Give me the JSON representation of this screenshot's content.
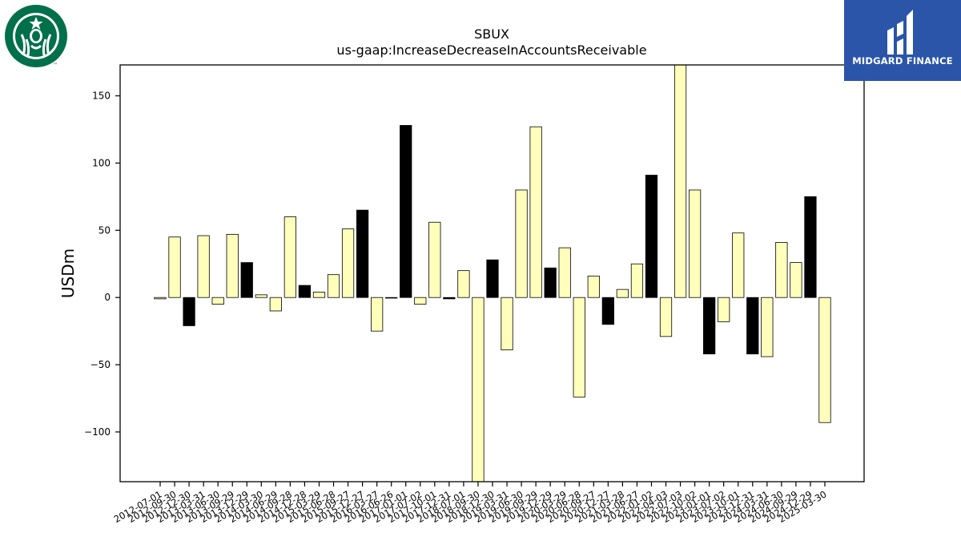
{
  "brand_left": {
    "name": "Starbucks",
    "mark": "™",
    "color": "#00704a"
  },
  "brand_right": {
    "name": "MIDGARD FINANCE",
    "color": "#2a55a8"
  },
  "chart_data": {
    "type": "bar",
    "title": "SBUX",
    "subtitle": "us-gaap:IncreaseDecreaseInAccountsReceivable",
    "xlabel": "",
    "ylabel": "USDm",
    "ylim": [
      -137,
      173
    ],
    "yticks": [
      -100,
      -50,
      0,
      50,
      100,
      150
    ],
    "grid": false,
    "colors": {
      "positive_light": "#ffffbb",
      "dark": "#000000",
      "edge": "#000000"
    },
    "categories": [
      "2012-07-01",
      "2012-09-30",
      "2012-12-30",
      "2013-03-31",
      "2013-06-30",
      "2013-09-29",
      "2013-12-29",
      "2014-03-30",
      "2014-06-29",
      "2014-09-28",
      "2014-12-28",
      "2015-03-29",
      "2015-06-28",
      "2015-09-27",
      "2015-12-27",
      "2016-03-27",
      "2016-06-26",
      "2017-01-01",
      "2017-07-02",
      "2017-10-01",
      "2017-12-31",
      "2018-07-01",
      "2018-09-30",
      "2018-12-30",
      "2019-03-31",
      "2019-06-30",
      "2019-09-29",
      "2019-12-29",
      "2020-03-29",
      "2020-06-28",
      "2020-09-27",
      "2020-12-27",
      "2021-03-28",
      "2021-06-27",
      "2022-01-02",
      "2022-04-03",
      "2022-07-03",
      "2022-10-02",
      "2023-01-01",
      "2023-07-02",
      "2023-10-01",
      "2023-12-31",
      "2024-03-31",
      "2024-06-30",
      "2024-09-29",
      "2024-12-29",
      "2025-03-30"
    ],
    "values": [
      -1,
      45,
      -21,
      46,
      -5,
      47,
      26,
      2,
      -10,
      60,
      9,
      4,
      17,
      51,
      65,
      -25,
      0,
      128,
      -5,
      56,
      -1,
      20,
      -140,
      28,
      -39,
      80,
      127,
      22,
      37,
      -74,
      16,
      -20,
      6,
      25,
      91,
      -29,
      175,
      80,
      -42,
      -18,
      48,
      -42,
      -44,
      41,
      26,
      75,
      -93
    ],
    "dark_flags": [
      0,
      0,
      1,
      0,
      0,
      0,
      1,
      0,
      0,
      0,
      1,
      0,
      0,
      0,
      1,
      0,
      0,
      1,
      0,
      0,
      1,
      0,
      0,
      1,
      0,
      0,
      0,
      1,
      0,
      0,
      0,
      1,
      0,
      0,
      1,
      0,
      0,
      0,
      1,
      0,
      0,
      1,
      0,
      0,
      0,
      1,
      0
    ]
  }
}
